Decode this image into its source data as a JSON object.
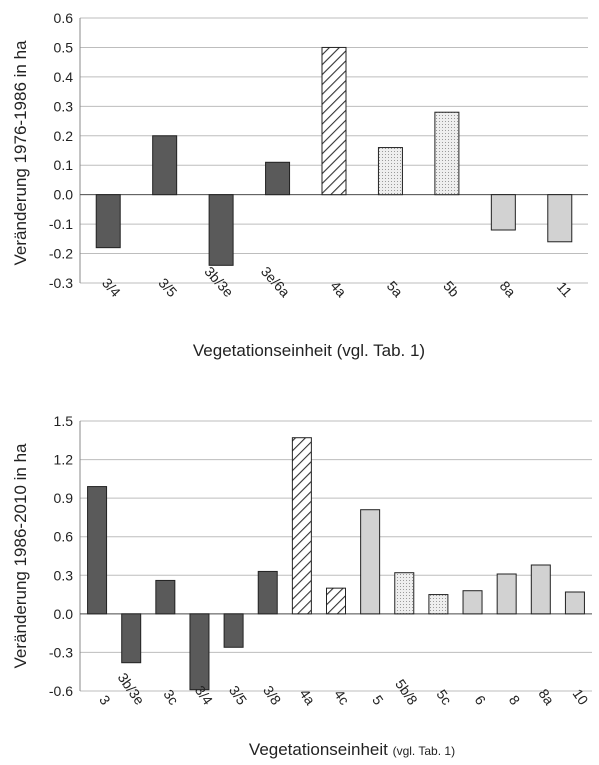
{
  "colors": {
    "dark": "#5a5a5a",
    "light": "#d2d2d2",
    "dotted": "#eeeeee",
    "grid": "#bdbdbd",
    "stroke": "#222222"
  },
  "chart_data": [
    {
      "type": "bar",
      "xlabel": "Vegetationseinheit (vgl. Tab. 1)",
      "ylabel": "Veränderung  1976-1986 in ha",
      "ylim": [
        -0.3,
        0.6
      ],
      "yticks": [
        "0.6",
        "0.5",
        "0.4",
        "0.3",
        "0.2",
        "0.1",
        "0.0",
        "-0.1",
        "-0.2",
        "-0.3"
      ],
      "grid": true,
      "categories": [
        "3/4",
        "3/5",
        "3b/3e",
        "3e/6a",
        "4a",
        "5a",
        "5b",
        "8a",
        "11"
      ],
      "values": [
        -0.18,
        0.2,
        -0.24,
        0.11,
        0.5,
        0.16,
        0.28,
        -0.12,
        -0.16
      ],
      "styles": [
        "dark",
        "dark",
        "dark",
        "dark",
        "hatched",
        "dotted",
        "dotted",
        "light",
        "light"
      ]
    },
    {
      "type": "bar",
      "xlabel_main": "Vegetationseinheit ",
      "xlabel_small": "(vgl. Tab. 1)",
      "ylabel": "Veränderung 1986-2010 in ha",
      "ylim": [
        -0.6,
        1.5
      ],
      "yticks": [
        "1.5",
        "1.2",
        "0.9",
        "0.6",
        "0.3",
        "0.0",
        "-0.3",
        "-0.6"
      ],
      "grid": true,
      "categories": [
        "3",
        "3b/3e",
        "3c",
        "3/4",
        "3/5",
        "3/8",
        "4a",
        "4c",
        "5",
        "5b/8",
        "5c",
        "6",
        "8",
        "8a",
        "10"
      ],
      "values": [
        0.99,
        -0.38,
        0.26,
        -0.59,
        -0.26,
        0.33,
        1.37,
        0.2,
        0.81,
        0.32,
        0.15,
        0.18,
        0.31,
        0.38,
        0.17
      ],
      "styles": [
        "dark",
        "dark",
        "dark",
        "dark",
        "dark",
        "dark",
        "hatched",
        "hatched",
        "light",
        "dotted",
        "dotted",
        "light",
        "light",
        "light",
        "light"
      ]
    }
  ]
}
